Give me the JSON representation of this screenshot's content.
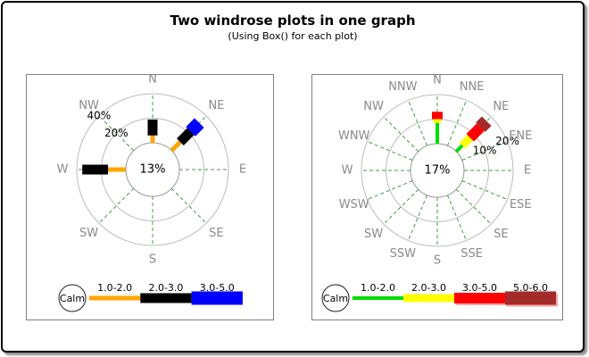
{
  "header": {
    "title": "Two windrose plots in one graph",
    "subtitle": "(Using Box() for each plot)"
  },
  "chart_data": [
    {
      "type": "windrose",
      "position": "left",
      "directions": [
        "N",
        "NE",
        "E",
        "SE",
        "S",
        "SW",
        "W",
        "NW"
      ],
      "calm_label": "13%",
      "calm_percent": 13,
      "ring_ticks": [
        {
          "label": "20%",
          "value": 20
        },
        {
          "label": "40%",
          "value": 40
        }
      ],
      "ring_label_direction": "NW",
      "scale_max_percent": 40,
      "legend_calm_label": "Calm",
      "bins": [
        {
          "label": "1.0-2.0",
          "color": "#FFA500",
          "width": 5,
          "shadow": false
        },
        {
          "label": "2.0-3.0",
          "color": "#000000",
          "width": 11,
          "shadow": false
        },
        {
          "label": "3.0-5.0",
          "color": "#0000FF",
          "width": 15,
          "shadow": false
        }
      ],
      "spokes": [
        {
          "direction": "N",
          "segments": [
            {
              "bin": "1.0-2.0",
              "from": 0,
              "to": 6
            },
            {
              "bin": "2.0-3.0",
              "from": 6,
              "to": 19
            }
          ]
        },
        {
          "direction": "NE",
          "segments": [
            {
              "bin": "1.0-2.0",
              "from": 0,
              "to": 10
            },
            {
              "bin": "2.0-3.0",
              "from": 10,
              "to": 22
            },
            {
              "bin": "3.0-5.0",
              "from": 22,
              "to": 32
            }
          ]
        },
        {
          "direction": "W",
          "segments": [
            {
              "bin": "1.0-2.0",
              "from": 0,
              "to": 14.5
            },
            {
              "bin": "2.0-3.0",
              "from": 14.5,
              "to": 35.5
            }
          ]
        }
      ]
    },
    {
      "type": "windrose",
      "position": "right",
      "directions": [
        "N",
        "NNE",
        "NE",
        "ENE",
        "E",
        "ESE",
        "SE",
        "SSE",
        "S",
        "SSW",
        "SW",
        "WSW",
        "W",
        "WNW",
        "NW",
        "NNW"
      ],
      "calm_label": "17%",
      "calm_percent": 17,
      "ring_ticks": [
        {
          "label": "10%",
          "value": 10
        },
        {
          "label": "20%",
          "value": 20
        }
      ],
      "ring_label_direction": "ENE",
      "scale_max_percent": 20,
      "legend_calm_label": "Calm",
      "bins": [
        {
          "label": "1.0-2.0",
          "color": "#00DD00",
          "width": 4,
          "shadow": false
        },
        {
          "label": "2.0-3.0",
          "color": "#FFFF00",
          "width": 9,
          "shadow": false
        },
        {
          "label": "3.0-5.0",
          "color": "#FF0000",
          "width": 12,
          "shadow": true
        },
        {
          "label": "5.0-6.0",
          "color": "#A52A2A",
          "width": 15,
          "shadow": true
        }
      ],
      "spokes": [
        {
          "direction": "N",
          "segments": [
            {
              "bin": "1.0-2.0",
              "from": 0,
              "to": 8.5
            },
            {
              "bin": "2.0-3.0",
              "from": 8.5,
              "to": 10
            },
            {
              "bin": "3.0-5.0",
              "from": 10,
              "to": 13
            }
          ]
        },
        {
          "direction": "NE",
          "segments": [
            {
              "bin": "1.0-2.0",
              "from": 0,
              "to": 3.5
            },
            {
              "bin": "2.0-3.0",
              "from": 3.5,
              "to": 8
            },
            {
              "bin": "3.0-5.0",
              "from": 8,
              "to": 14
            },
            {
              "bin": "5.0-6.0",
              "from": 14,
              "to": 17.5
            }
          ]
        }
      ]
    }
  ],
  "style_colors": {
    "ring": "#BBBBBB",
    "calm_circle": "#999999",
    "ray": "#3FA03F",
    "compass_label": "#8A8A8A",
    "text": "#000000",
    "legend_shadow": "#F2A8A8"
  }
}
